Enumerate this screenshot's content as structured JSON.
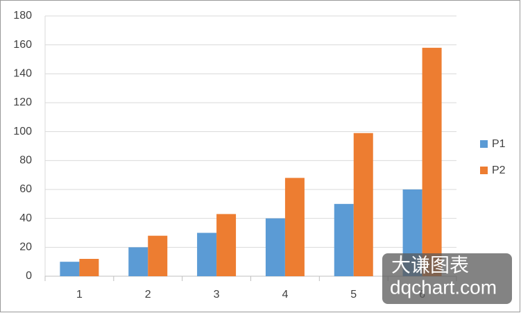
{
  "chart_data": {
    "type": "bar",
    "categories": [
      "1",
      "2",
      "3",
      "4",
      "5",
      "6"
    ],
    "series": [
      {
        "name": "P1",
        "color": "#5b9bd5",
        "values": [
          10,
          20,
          30,
          40,
          50,
          60
        ]
      },
      {
        "name": "P2",
        "color": "#ed7d31",
        "values": [
          12,
          28,
          43,
          68,
          99,
          158
        ]
      }
    ],
    "ylim": [
      0,
      180
    ],
    "yticks": [
      0,
      20,
      40,
      60,
      80,
      100,
      120,
      140,
      160,
      180
    ],
    "grid": true,
    "legend": "right",
    "watermark": [
      "大谦图表",
      "dqchart.com"
    ]
  }
}
